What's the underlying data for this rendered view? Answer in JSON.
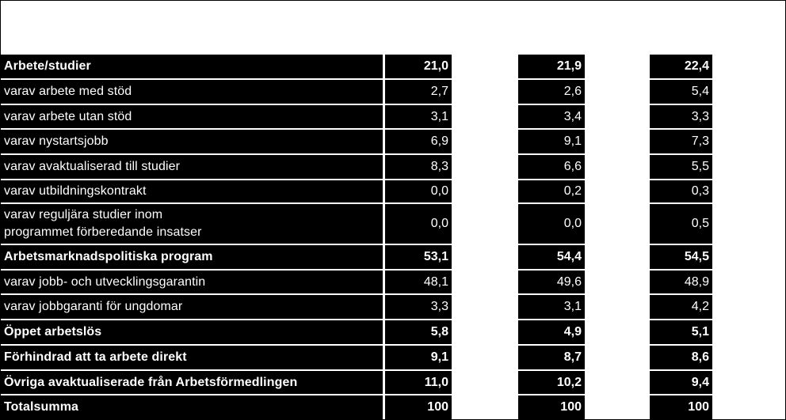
{
  "table": {
    "rows": [
      {
        "label": "Arbete/studier",
        "bold": true,
        "values": [
          "21,0",
          "21,9",
          "22,4"
        ]
      },
      {
        "label": "varav arbete med stöd",
        "bold": false,
        "values": [
          "2,7",
          "2,6",
          "5,4"
        ]
      },
      {
        "label": "varav arbete utan stöd",
        "bold": false,
        "values": [
          "3,1",
          "3,4",
          "3,3"
        ]
      },
      {
        "label": "varav nystartsjobb",
        "bold": false,
        "values": [
          "6,9",
          "9,1",
          "7,3"
        ]
      },
      {
        "label": "varav avaktualiserad till studier",
        "bold": false,
        "values": [
          "8,3",
          "6,6",
          "5,5"
        ]
      },
      {
        "label": "varav utbildningskontrakt",
        "bold": false,
        "values": [
          "0,0",
          "0,2",
          "0,3"
        ]
      },
      {
        "label": "varav reguljära studier inom\nprogrammet förberedande insatser",
        "bold": false,
        "values": [
          "0,0",
          "0,0",
          "0,5"
        ]
      },
      {
        "label": "Arbetsmarknadspolitiska program",
        "bold": true,
        "values": [
          "53,1",
          "54,4",
          "54,5"
        ]
      },
      {
        "label": "varav jobb- och utvecklingsgarantin",
        "bold": false,
        "values": [
          "48,1",
          "49,6",
          "48,9"
        ]
      },
      {
        "label": "varav jobbgaranti för ungdomar",
        "bold": false,
        "values": [
          "3,3",
          "3,1",
          "4,2"
        ]
      },
      {
        "label": "Öppet arbetslös",
        "bold": true,
        "values": [
          "5,8",
          "4,9",
          "5,1"
        ]
      },
      {
        "label": "Förhindrad att ta arbete direkt",
        "bold": true,
        "values": [
          "9,1",
          "8,7",
          "8,6"
        ]
      },
      {
        "label": "Övriga avaktualiserade från Arbetsförmedlingen",
        "bold": true,
        "values": [
          "11,0",
          "10,2",
          "9,4"
        ]
      },
      {
        "label": "Totalsumma",
        "bold": true,
        "values": [
          "100",
          "100",
          "100"
        ]
      }
    ]
  }
}
